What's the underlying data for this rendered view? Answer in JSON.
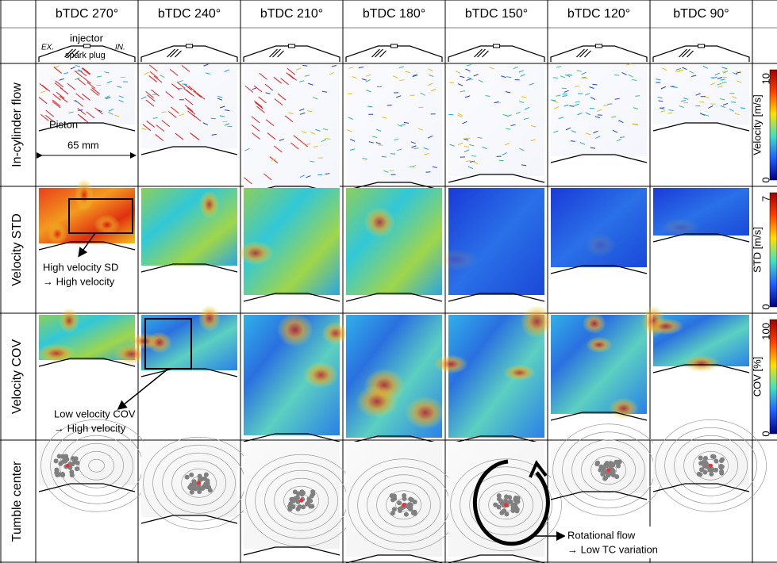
{
  "columns": [
    "bTDC 270°",
    "bTDC 240°",
    "bTDC 210°",
    "bTDC 180°",
    "bTDC 150°",
    "bTDC 120°",
    "bTDC 90°"
  ],
  "rows": [
    "In-cylinder flow",
    "Velocity STD",
    "Velocity COV",
    "Tumble center"
  ],
  "head_labels": {
    "exhaust": "EX.",
    "injector": "injector",
    "intake": "IN.",
    "spark_plug": "spark plug"
  },
  "annotations": {
    "piston": "Piston",
    "scale": "65 mm",
    "std_note": [
      "High velocity SD",
      "→ High velocity"
    ],
    "cov_note": [
      "Low velocity COV",
      "→ High velocity"
    ],
    "tumble_note": [
      "Rotational flow",
      "→ Low TC variation"
    ]
  },
  "colorbars": [
    {
      "label": "Velocity [m/s]",
      "max": 10,
      "min": 0
    },
    {
      "label": "STD [m/s]",
      "max": 7,
      "min": 0
    },
    {
      "label": "COV [%]",
      "max": 100,
      "min": 0
    }
  ]
}
